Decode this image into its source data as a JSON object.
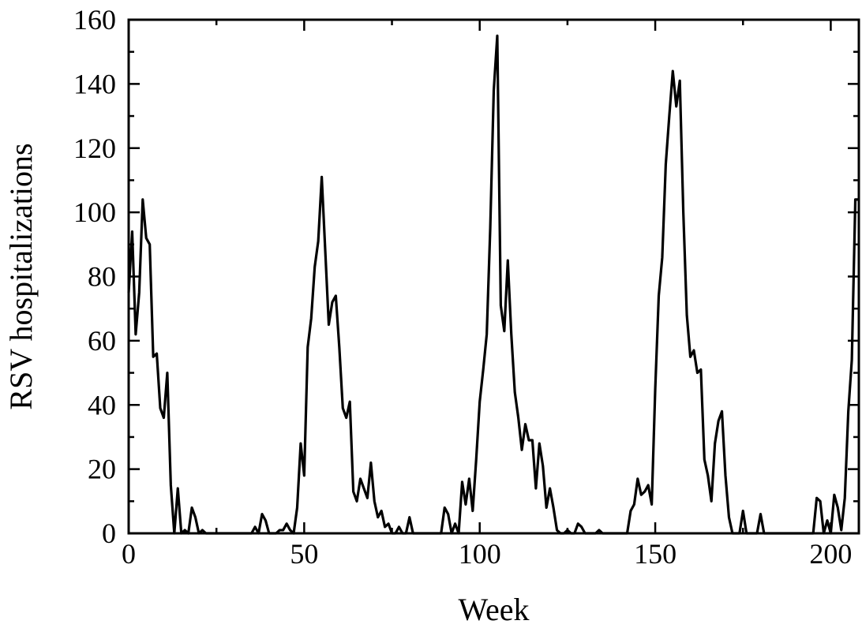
{
  "chart_data": {
    "type": "line",
    "title": "",
    "xlabel": "Week",
    "ylabel": "RSV hospitalizations",
    "xlim": [
      0,
      208
    ],
    "ylim": [
      0,
      160
    ],
    "xticks": [
      0,
      50,
      100,
      150,
      200
    ],
    "yticks": [
      0,
      20,
      40,
      60,
      80,
      100,
      120,
      140,
      160
    ],
    "grid": false,
    "legend": "none",
    "line_color": "#000000",
    "series": [
      {
        "x": [
          0,
          1,
          2,
          3,
          4,
          5,
          6,
          7,
          8,
          9,
          10,
          11,
          12,
          13,
          14,
          15,
          16,
          17,
          18,
          19,
          20,
          21,
          22,
          23,
          24,
          25,
          26,
          27,
          28,
          29,
          30,
          31,
          32,
          33,
          34,
          35,
          36,
          37,
          38,
          39,
          40,
          41,
          42,
          43,
          44,
          45,
          46,
          47,
          48,
          49,
          50,
          51,
          52,
          53,
          54,
          55,
          56,
          57,
          58,
          59,
          60,
          61,
          62,
          63,
          64,
          65,
          66,
          67,
          68,
          69,
          70,
          71,
          72,
          73,
          74,
          75,
          76,
          77,
          78,
          79,
          80,
          81,
          82,
          83,
          84,
          85,
          86,
          87,
          88,
          89,
          90,
          91,
          92,
          93,
          94,
          95,
          96,
          97,
          98,
          99,
          100,
          101,
          102,
          103,
          104,
          105,
          106,
          107,
          108,
          109,
          110,
          111,
          112,
          113,
          114,
          115,
          116,
          117,
          118,
          119,
          120,
          121,
          122,
          123,
          124,
          125,
          126,
          127,
          128,
          129,
          130,
          131,
          132,
          133,
          134,
          135,
          136,
          137,
          138,
          139,
          140,
          141,
          142,
          143,
          144,
          145,
          146,
          147,
          148,
          149,
          150,
          151,
          152,
          153,
          154,
          155,
          156,
          157,
          158,
          159,
          160,
          161,
          162,
          163,
          164,
          165,
          166,
          167,
          168,
          169,
          170,
          171,
          172,
          173,
          174,
          175,
          176,
          177,
          178,
          179,
          180,
          181,
          182,
          183,
          184,
          185,
          186,
          187,
          188,
          189,
          190,
          191,
          192,
          193,
          194,
          195,
          196,
          197,
          198,
          199,
          200,
          201,
          202,
          203,
          204,
          205,
          206,
          207,
          208
        ],
        "values": [
          75,
          94,
          62,
          75,
          104,
          92,
          90,
          55,
          56,
          39,
          36,
          50,
          15,
          0,
          14,
          0,
          1,
          0,
          8,
          5,
          0,
          1,
          0,
          0,
          0,
          0,
          0,
          0,
          0,
          0,
          0,
          0,
          0,
          0,
          0,
          0,
          2,
          0,
          6,
          4,
          0,
          0,
          0,
          1,
          1,
          3,
          1,
          0,
          8,
          28,
          18,
          58,
          67,
          83,
          91,
          111,
          88,
          65,
          72,
          74,
          58,
          39,
          36,
          41,
          13,
          10,
          17,
          14,
          11,
          22,
          10,
          5,
          7,
          2,
          3,
          0,
          0,
          2,
          0,
          0,
          5,
          0,
          0,
          0,
          0,
          0,
          0,
          0,
          0,
          0,
          8,
          6,
          0,
          3,
          0,
          16,
          9,
          17,
          7,
          23,
          41,
          51,
          62,
          95,
          138,
          155,
          71,
          63,
          85,
          62,
          44,
          36,
          26,
          34,
          29,
          29,
          14,
          28,
          21,
          8,
          14,
          8,
          1,
          0,
          0,
          1,
          0,
          0,
          3,
          2,
          0,
          0,
          0,
          0,
          1,
          0,
          0,
          0,
          0,
          0,
          0,
          0,
          0,
          7,
          9,
          17,
          12,
          13,
          15,
          9,
          45,
          74,
          86,
          115,
          130,
          144,
          133,
          141,
          100,
          68,
          55,
          57,
          50,
          51,
          23,
          18,
          10,
          28,
          35,
          38,
          18,
          5,
          0,
          0,
          0,
          7,
          0,
          0,
          0,
          0,
          6,
          0,
          0,
          0,
          0,
          0,
          0,
          0,
          0,
          0,
          0,
          0,
          0,
          0,
          0,
          0,
          11,
          10,
          0,
          4,
          0,
          12,
          8,
          1,
          11,
          38,
          54,
          104,
          104
        ]
      }
    ]
  }
}
